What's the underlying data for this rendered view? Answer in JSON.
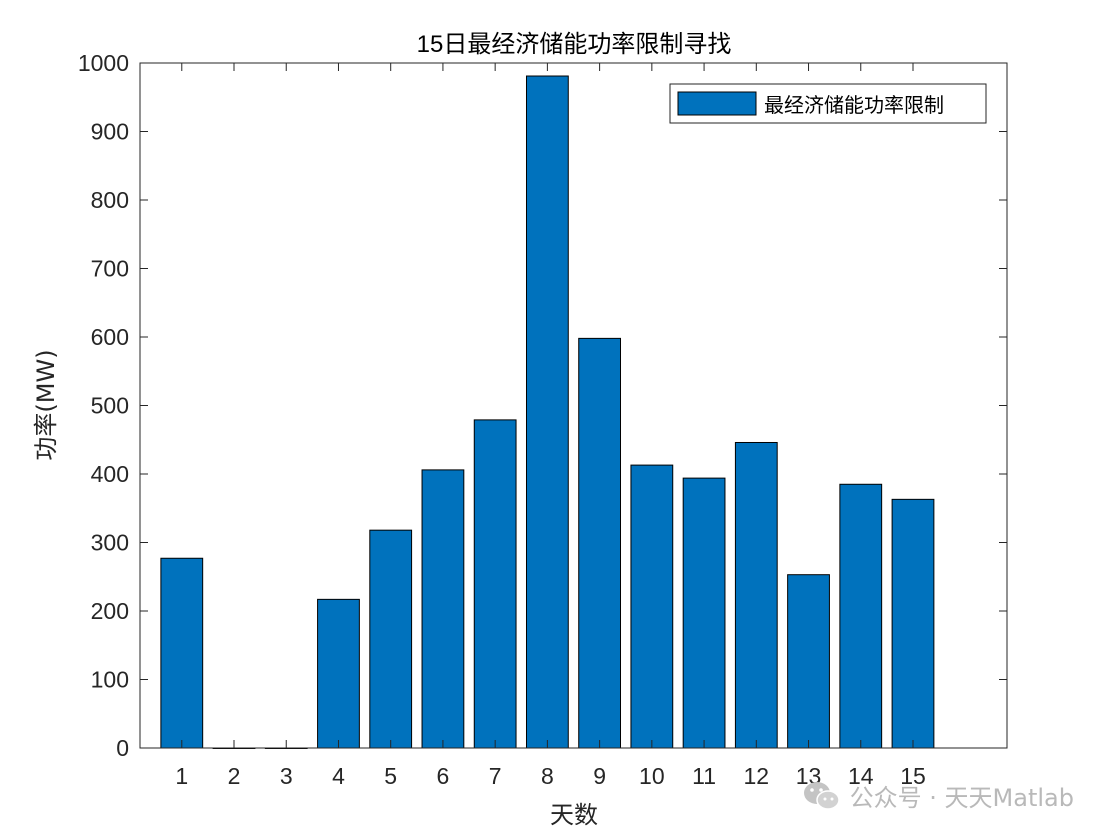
{
  "chart_data": {
    "type": "bar",
    "title": "15日最经济储能功率限制寻找",
    "xlabel": "天数",
    "ylabel": "功率(MW)",
    "categories": [
      "1",
      "2",
      "3",
      "4",
      "5",
      "6",
      "7",
      "8",
      "9",
      "10",
      "11",
      "12",
      "13",
      "14",
      "15"
    ],
    "series": [
      {
        "name": "最经济储能功率限制",
        "values": [
          277,
          0,
          0,
          217,
          318,
          406,
          479,
          981,
          598,
          413,
          394,
          446,
          253,
          385,
          363
        ],
        "color": "#0072bd"
      }
    ],
    "ylim": [
      0,
      1000
    ],
    "yticks": [
      0,
      100,
      200,
      300,
      400,
      500,
      600,
      700,
      800,
      900,
      1000
    ],
    "xlim": [
      0.2,
      16.8
    ],
    "grid": false,
    "legend_position": "top-right"
  },
  "watermark": {
    "text": "公众号 · 天天Matlab",
    "icon": "wechat-icon"
  }
}
